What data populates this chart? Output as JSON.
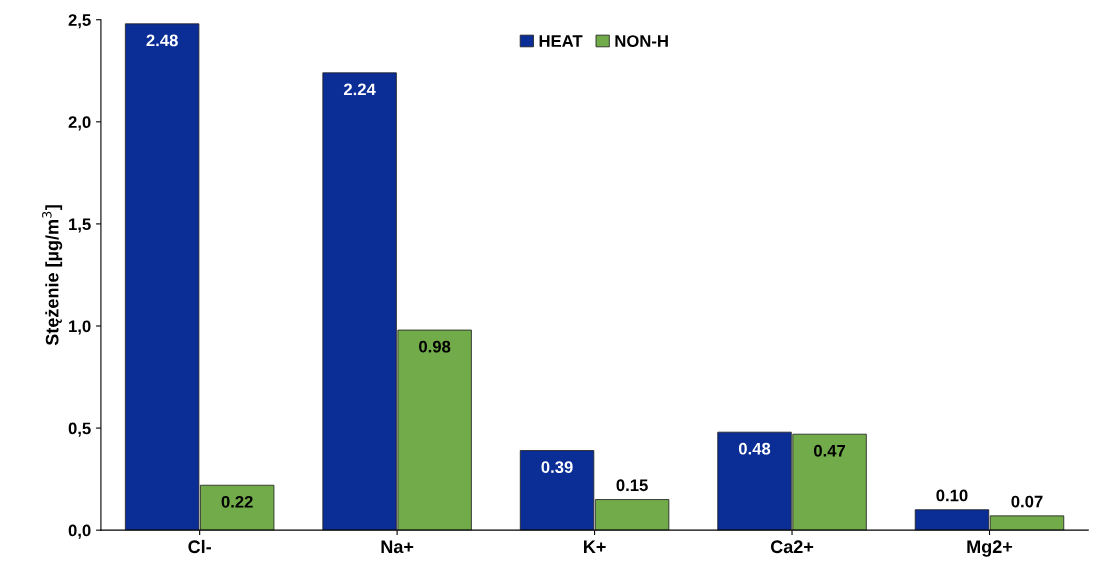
{
  "chart_data": {
    "type": "bar",
    "ylabel": "Stężenie [µg/m$^{3}$]",
    "categories": [
      "Cl-",
      "Na+",
      "K+",
      "Ca2+",
      "Mg2+"
    ],
    "series": [
      {
        "name": "HEAT",
        "color": "#0a2d96",
        "values": [
          2.48,
          2.24,
          0.39,
          0.48,
          0.1
        ],
        "value_labels": [
          "2.48",
          "2.24",
          "0.39",
          "0.48",
          "0.10"
        ]
      },
      {
        "name": "NON-H",
        "color": "#72ab4a",
        "values": [
          0.22,
          0.98,
          0.15,
          0.47,
          0.07
        ],
        "value_labels": [
          "0.22",
          "0.98",
          "0.15",
          "0.47",
          "0.07"
        ]
      }
    ],
    "ylim": [
      0,
      2.5
    ],
    "yticks": [
      {
        "value": 0,
        "label": "0,0"
      },
      {
        "value": 0.5,
        "label": "0,5"
      },
      {
        "value": 1.0,
        "label": "1,0"
      },
      {
        "value": 1.5,
        "label": "1,5"
      },
      {
        "value": 2.0,
        "label": "2,0"
      },
      {
        "value": 2.5,
        "label": "2,5"
      }
    ],
    "grid": false,
    "legend": "top"
  }
}
